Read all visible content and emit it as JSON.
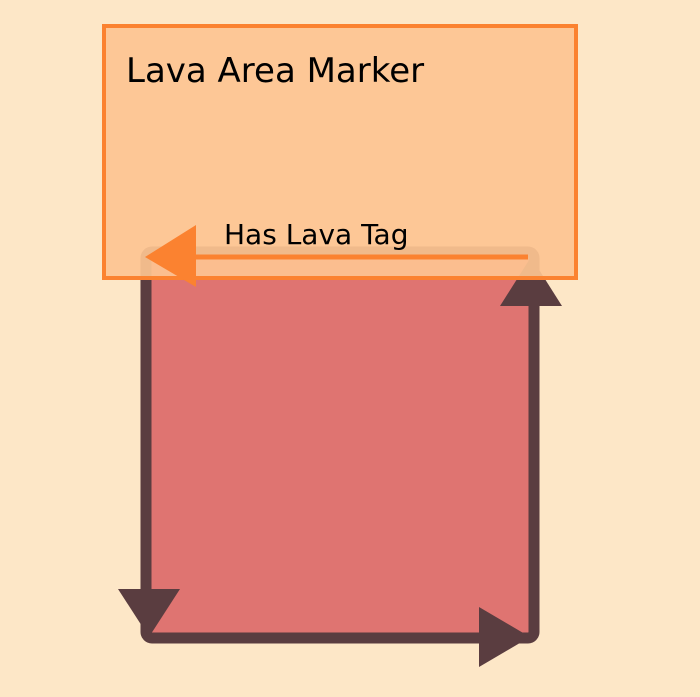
{
  "diagram": {
    "marker": {
      "label": "Lava Area Marker"
    },
    "edge": {
      "label": "Has Lava Tag"
    }
  },
  "colors": {
    "background": "#fde7c7",
    "marker_fill": "#fdc491",
    "marker_stroke": "#fb8230",
    "lava_fill": "#df7471",
    "lava_outline": "#5a3d40",
    "text": "#000000"
  }
}
